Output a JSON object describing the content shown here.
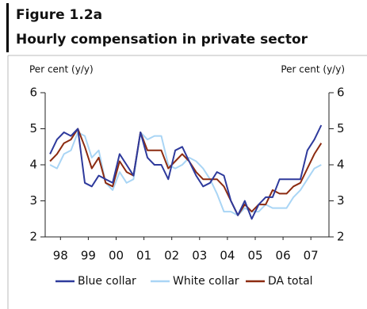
{
  "chart_data": {
    "type": "line",
    "figure_label": "Figure 1.2a",
    "title": "Hourly compensation in private sector",
    "y_label": "Per cent (y/y)",
    "y2_label": "Per cent (y/y)",
    "x": [
      1998.125,
      1998.375,
      1998.625,
      1998.875,
      1999.125,
      1999.375,
      1999.625,
      1999.875,
      2000.125,
      2000.375,
      2000.625,
      2000.875,
      2001.125,
      2001.375,
      2001.625,
      2001.875,
      2002.125,
      2002.375,
      2002.625,
      2002.875,
      2003.125,
      2003.375,
      2003.625,
      2003.875,
      2004.125,
      2004.375,
      2004.625,
      2004.875,
      2005.125,
      2005.375,
      2005.625,
      2005.875,
      2006.125,
      2006.375,
      2006.625,
      2006.875,
      2007.125,
      2007.375,
      2007.625,
      2007.875
    ],
    "xlim": [
      1997.95,
      2008.15
    ],
    "xticks": [
      {
        "value": 1998.5,
        "label": "98"
      },
      {
        "value": 1999.5,
        "label": "99"
      },
      {
        "value": 2000.5,
        "label": "00"
      },
      {
        "value": 2001.5,
        "label": "01"
      },
      {
        "value": 2002.5,
        "label": "02"
      },
      {
        "value": 2003.5,
        "label": "03"
      },
      {
        "value": 2004.5,
        "label": "04"
      },
      {
        "value": 2005.5,
        "label": "05"
      },
      {
        "value": 2006.5,
        "label": "06"
      },
      {
        "value": 2007.5,
        "label": "07"
      }
    ],
    "ylim": [
      2,
      6
    ],
    "yticks": [
      2,
      3,
      4,
      5,
      6
    ],
    "series": [
      {
        "name": "Blue collar",
        "color": "#2e3a9c",
        "values": [
          4.3,
          4.7,
          4.9,
          4.8,
          5.0,
          3.5,
          3.4,
          3.7,
          3.6,
          3.5,
          4.3,
          4.0,
          3.7,
          4.9,
          4.2,
          4.0,
          4.0,
          3.6,
          4.4,
          4.5,
          4.1,
          3.7,
          3.4,
          3.5,
          3.8,
          3.7,
          3.0,
          2.6,
          3.0,
          2.5,
          2.9,
          3.1,
          3.1,
          3.6,
          3.6,
          3.6,
          3.6,
          4.4,
          4.7,
          5.1
        ]
      },
      {
        "name": "White collar",
        "color": "#a9d5f5",
        "values": [
          4.0,
          3.9,
          4.3,
          4.4,
          4.9,
          4.8,
          4.2,
          4.4,
          3.5,
          3.3,
          3.8,
          3.5,
          3.6,
          4.9,
          4.7,
          4.8,
          4.8,
          4.0,
          3.9,
          4.0,
          4.2,
          4.1,
          3.9,
          3.6,
          3.2,
          2.7,
          2.7,
          2.6,
          2.8,
          2.7,
          2.7,
          2.9,
          2.8,
          2.8,
          2.8,
          3.1,
          3.3,
          3.6,
          3.9,
          4.0
        ]
      },
      {
        "name": "DA total",
        "color": "#8c2b10",
        "values": [
          4.1,
          4.3,
          4.6,
          4.7,
          5.0,
          4.5,
          3.9,
          4.2,
          3.5,
          3.4,
          4.1,
          3.8,
          3.7,
          4.9,
          4.4,
          4.4,
          4.4,
          3.9,
          4.1,
          4.3,
          4.1,
          3.8,
          3.6,
          3.6,
          3.6,
          3.4,
          3.0,
          2.6,
          2.9,
          2.7,
          2.9,
          2.9,
          3.3,
          3.2,
          3.2,
          3.4,
          3.5,
          3.9,
          4.3,
          4.6
        ]
      }
    ],
    "legend": "bottom"
  }
}
